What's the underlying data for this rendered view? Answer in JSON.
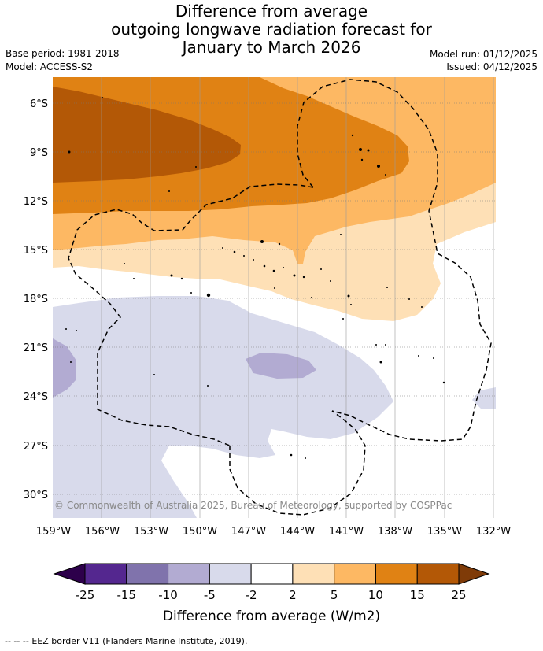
{
  "title": {
    "line1": "Difference from average",
    "line2": "outgoing longwave radiation forecast for",
    "line3": "January to March 2026"
  },
  "meta": {
    "base_period": "Base period: 1981-2018",
    "model": "Model: ACCESS-S2",
    "model_run": "Model run: 01/12/2025",
    "issued": "Issued: 04/12/2025"
  },
  "map": {
    "lat_labels": [
      "6°S",
      "9°S",
      "12°S",
      "15°S",
      "18°S",
      "21°S",
      "24°S",
      "27°S",
      "30°S"
    ],
    "lon_labels": [
      "159°W",
      "156°W",
      "153°W",
      "150°W",
      "147°W",
      "144°W",
      "141°W",
      "138°W",
      "135°W",
      "132°W"
    ],
    "copyright": "© Commonwealth of Australia 2025, Bureau of Meteorology, supported by COSPPac"
  },
  "colorbar": {
    "ticks": [
      "-25",
      "-15",
      "-10",
      "-5",
      "-2",
      "2",
      "5",
      "10",
      "15",
      "25"
    ],
    "colors": [
      "#54278f",
      "#8073ac",
      "#b2abd2",
      "#d8daeb",
      "#ffffff",
      "#fee0b6",
      "#fdb863",
      "#e08214",
      "#b35806"
    ],
    "under_color": "#2d004b",
    "over_color": "#7f3b08",
    "label": "Difference from average (W/m2)"
  },
  "footer": {
    "legend_symbol": "-- -- --",
    "legend_text": "EEZ border V11 (Flanders Marine Institute, 2019)."
  }
}
